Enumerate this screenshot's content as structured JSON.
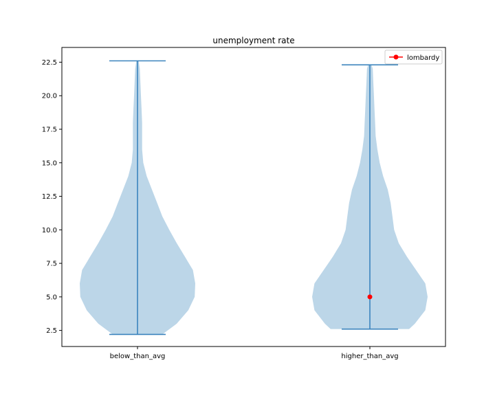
{
  "chart_data": {
    "type": "violin",
    "title": "unemployment rate",
    "xlabel": "",
    "ylabel": "",
    "categories": [
      "below_than_avg",
      "higher_than_avg"
    ],
    "ylim": [
      1.3,
      23.6
    ],
    "yticks": [
      2.5,
      5.0,
      7.5,
      10.0,
      12.5,
      15.0,
      17.5,
      20.0,
      22.5
    ],
    "ytick_labels": [
      "2.5",
      "5.0",
      "7.5",
      "10.0",
      "12.5",
      "15.0",
      "17.5",
      "20.0",
      "22.5"
    ],
    "grid": false,
    "violin_color": "#bcd6e8",
    "line_color": "#3a83bd",
    "violins": [
      {
        "category": "below_than_avg",
        "min": 2.2,
        "max": 22.6,
        "profile": [
          [
            2.2,
            0.43
          ],
          [
            3.0,
            0.68
          ],
          [
            4.0,
            0.88
          ],
          [
            5.0,
            0.99
          ],
          [
            6.0,
            1.0
          ],
          [
            7.0,
            0.96
          ],
          [
            8.0,
            0.82
          ],
          [
            9.0,
            0.68
          ],
          [
            10.0,
            0.55
          ],
          [
            11.0,
            0.43
          ],
          [
            12.0,
            0.34
          ],
          [
            13.0,
            0.25
          ],
          [
            14.0,
            0.16
          ],
          [
            15.0,
            0.1
          ],
          [
            16.0,
            0.08
          ],
          [
            17.0,
            0.08
          ],
          [
            18.0,
            0.08
          ],
          [
            19.0,
            0.07
          ],
          [
            20.0,
            0.06
          ],
          [
            21.0,
            0.05
          ],
          [
            22.0,
            0.04
          ],
          [
            22.6,
            0.02
          ]
        ]
      },
      {
        "category": "higher_than_avg",
        "min": 2.6,
        "max": 22.3,
        "profile": [
          [
            2.6,
            0.68
          ],
          [
            3.0,
            0.78
          ],
          [
            4.0,
            0.96
          ],
          [
            5.0,
            1.0
          ],
          [
            6.0,
            0.96
          ],
          [
            7.0,
            0.8
          ],
          [
            8.0,
            0.64
          ],
          [
            9.0,
            0.5
          ],
          [
            10.0,
            0.42
          ],
          [
            11.0,
            0.39
          ],
          [
            12.0,
            0.36
          ],
          [
            13.0,
            0.31
          ],
          [
            14.0,
            0.23
          ],
          [
            15.0,
            0.17
          ],
          [
            16.0,
            0.13
          ],
          [
            17.0,
            0.1
          ],
          [
            18.0,
            0.09
          ],
          [
            19.0,
            0.08
          ],
          [
            20.0,
            0.07
          ],
          [
            21.0,
            0.06
          ],
          [
            22.0,
            0.05
          ],
          [
            22.3,
            0.03
          ]
        ]
      }
    ],
    "markers": [
      {
        "category": "higher_than_avg",
        "value": 5.0,
        "label": "lombardy",
        "color": "#ff0000"
      }
    ],
    "legend": {
      "position": "top-right",
      "entries": [
        {
          "label": "lombardy",
          "color": "#ff0000"
        }
      ]
    }
  }
}
